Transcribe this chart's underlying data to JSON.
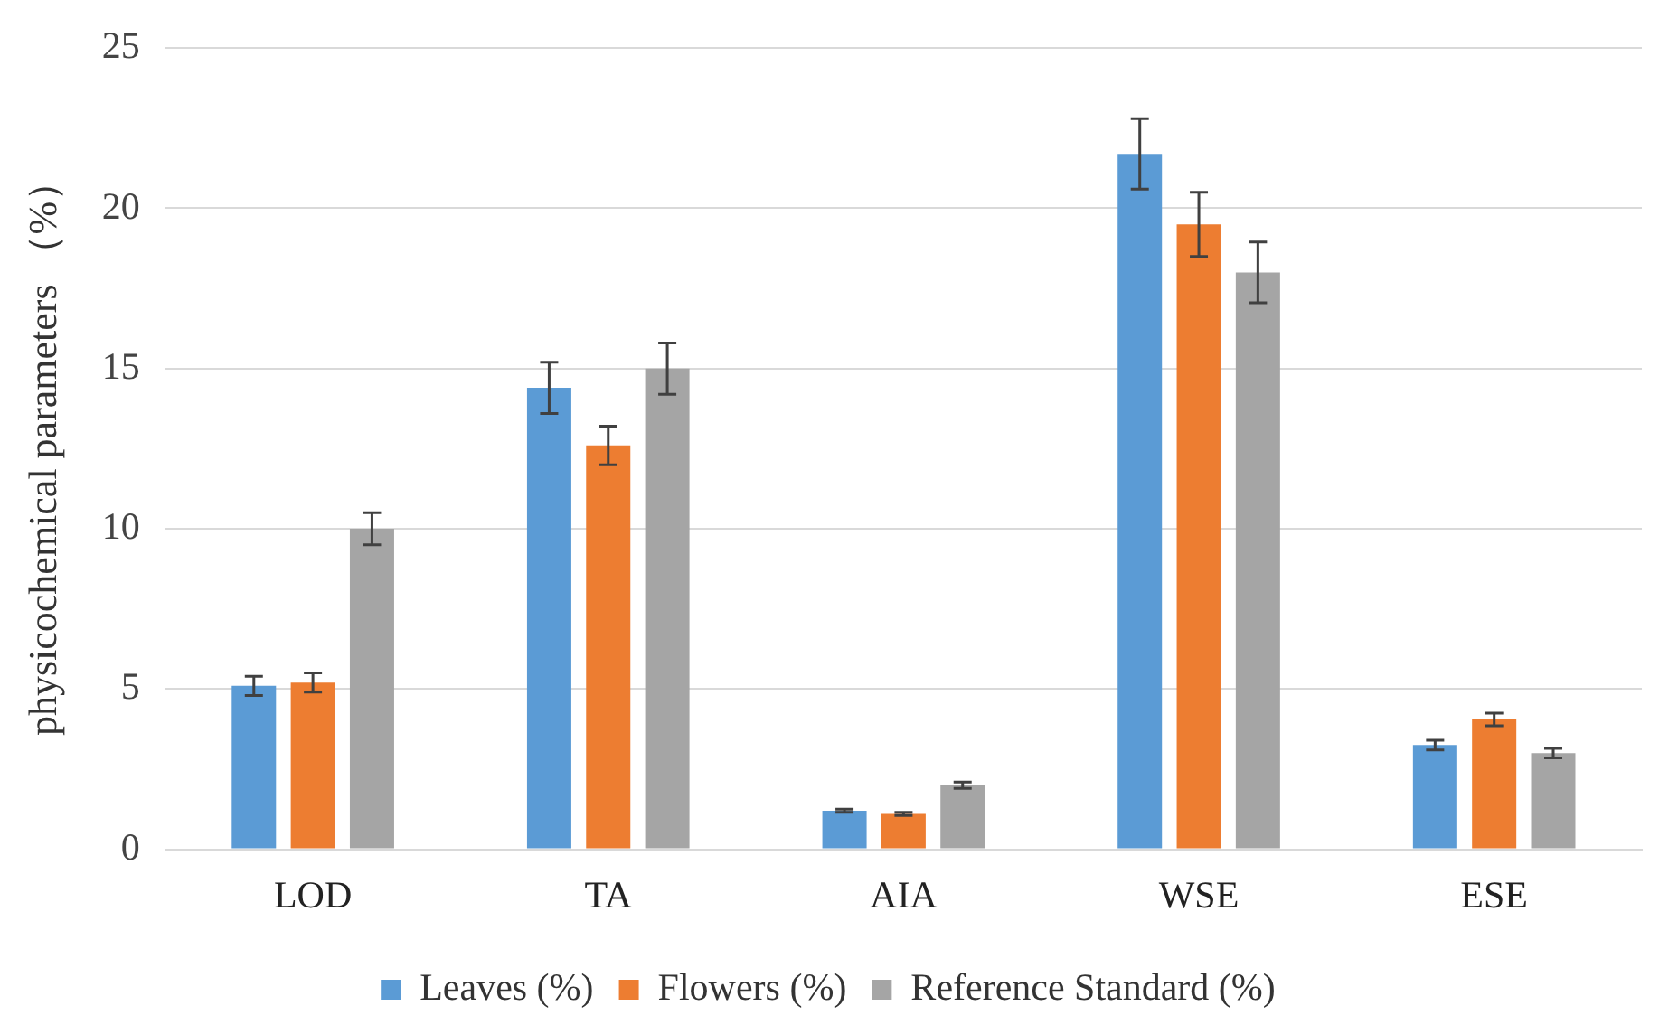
{
  "chart_data": {
    "type": "bar",
    "ylabel": "physicochemical parameters （%）",
    "categories": [
      "LOD",
      "TA",
      "AIA",
      "WSE",
      "ESE"
    ],
    "series": [
      {
        "name": "Leaves (%)",
        "color": "#5b9bd5",
        "values": [
          5.1,
          14.4,
          1.2,
          21.7,
          3.25
        ],
        "errors": [
          0.3,
          0.8,
          0.05,
          1.1,
          0.15
        ]
      },
      {
        "name": "Flowers (%)",
        "color": "#ed7d31",
        "values": [
          5.2,
          12.6,
          1.1,
          19.5,
          4.05
        ],
        "errors": [
          0.3,
          0.6,
          0.05,
          1.0,
          0.2
        ]
      },
      {
        "name": "Reference Standard (%)",
        "color": "#a5a5a5",
        "values": [
          10.0,
          15.0,
          2.0,
          18.0,
          3.0
        ],
        "errors": [
          0.5,
          0.8,
          0.1,
          0.95,
          0.15
        ]
      }
    ],
    "ylim": [
      0,
      25
    ],
    "yticks": [
      0,
      5,
      10,
      15,
      20,
      25
    ],
    "grid": "y",
    "legend": "bottom"
  }
}
